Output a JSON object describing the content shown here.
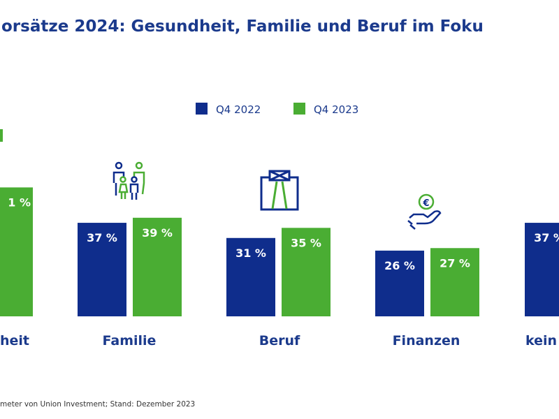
{
  "colors": {
    "q4_2022": "#0f2d8c",
    "q4_2023": "#4aad33",
    "text": "#1b3a8c"
  },
  "chart_data": {
    "type": "bar",
    "title": "orsätze 2024: Gesundheit, Familie und Beruf im Foku",
    "legend": [
      "Q4 2022",
      "Q4 2023"
    ],
    "legend_position": "top-center",
    "categories": [
      "heit",
      "Familie",
      "Beruf",
      "Finanzen",
      "kein"
    ],
    "category_icons": [
      "",
      "family-icon",
      "shirt-tie-icon",
      "hand-euro-icon",
      ""
    ],
    "series": [
      {
        "name": "Q4 2022",
        "values": [
          null,
          37,
          31,
          26,
          37
        ]
      },
      {
        "name": "Q4 2023",
        "values": [
          51,
          39,
          35,
          27,
          null
        ]
      }
    ],
    "value_labels": [
      [
        null,
        "37 %",
        "31 %",
        "26 %",
        "37 %"
      ],
      [
        "1 %",
        "39 %",
        "35 %",
        "27 %",
        null
      ]
    ],
    "unit": "%",
    "ylim": [
      0,
      60
    ],
    "grid": false
  },
  "footer": "meter von Union Investment; Stand: Dezember 2023"
}
